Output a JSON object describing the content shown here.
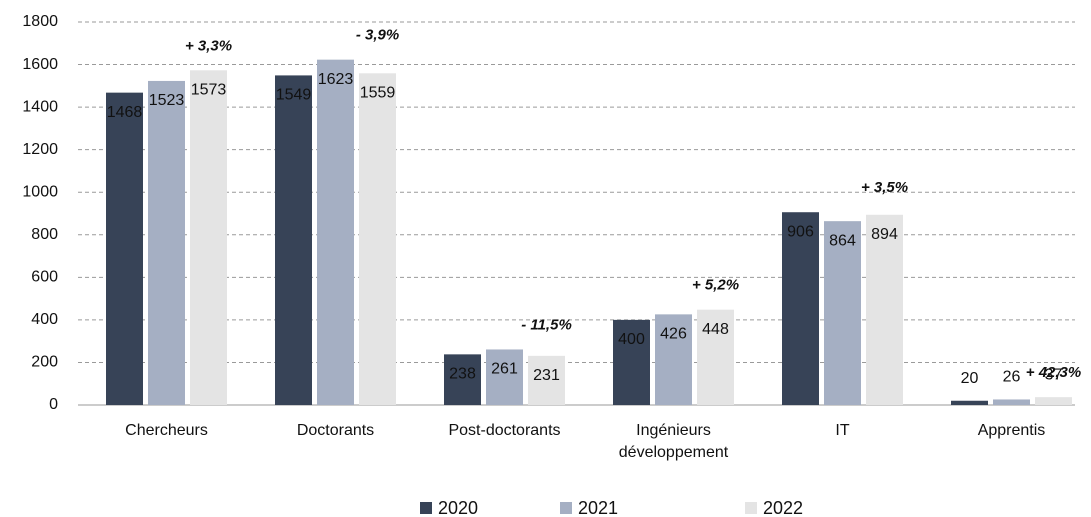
{
  "chart_data": {
    "type": "bar",
    "categories": [
      "Chercheurs",
      "Doctorants",
      "Post-doctorants",
      "Ingénieurs développement",
      "IT",
      "Apprentis"
    ],
    "series": [
      {
        "name": "2020",
        "color": "#374357",
        "values": [
          1468,
          1549,
          238,
          400,
          906,
          20
        ]
      },
      {
        "name": "2021",
        "color": "#a5afc3",
        "values": [
          1523,
          1623,
          261,
          426,
          864,
          26
        ]
      },
      {
        "name": "2022",
        "color": "#e4e4e4",
        "values": [
          1573,
          1559,
          231,
          448,
          894,
          37
        ]
      }
    ],
    "annotations": [
      {
        "text": "+ 3,3%",
        "category": "Chercheurs",
        "color": "#2db34a"
      },
      {
        "text": "- 3,9%",
        "category": "Doctorants",
        "color": "#e8242a"
      },
      {
        "text": "- 11,5%",
        "category": "Post-doctorants",
        "color": "#e8242a"
      },
      {
        "text": "+ 5,2%",
        "category": "Ingénieurs développement",
        "color": "#2db34a"
      },
      {
        "text": "+ 3,5%",
        "category": "IT",
        "color": "#2db34a"
      },
      {
        "text": "+ 42,3%",
        "category": "Apprentis",
        "color": "#2db34a"
      }
    ],
    "ylim": [
      0,
      1800
    ],
    "yticks": [
      0,
      200,
      400,
      600,
      800,
      1000,
      1200,
      1400,
      1600,
      1800
    ],
    "grid": true,
    "legend": "bottom"
  }
}
